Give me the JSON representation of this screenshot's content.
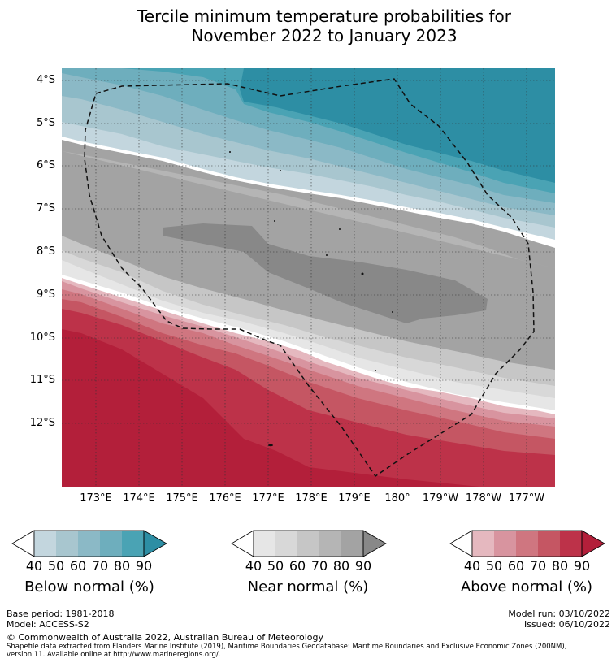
{
  "title_line1": "Tercile minimum temperature probabilities for",
  "title_line2": "November 2022 to January 2023",
  "map": {
    "lat_labels": [
      "4°S",
      "5°S",
      "6°S",
      "7°S",
      "8°S",
      "9°S",
      "10°S",
      "11°S",
      "12°S"
    ],
    "lon_labels": [
      "173°E",
      "174°E",
      "175°E",
      "176°E",
      "177°E",
      "178°E",
      "179°E",
      "180°",
      "179°W",
      "178°W",
      "177°W"
    ],
    "region_outline": "dashed EEZ boundary",
    "colors": {
      "below": [
        "#c3d6de",
        "#a8c6cf",
        "#8bb9c6",
        "#6eaebd",
        "#4aa3b4",
        "#2d8ea4"
      ],
      "near": [
        "#e6e6e6",
        "#d8d8d8",
        "#c6c6c6",
        "#b5b5b5",
        "#a3a3a3",
        "#888888"
      ],
      "above": [
        "#e5b8bf",
        "#d8949f",
        "#cf7680",
        "#c55663",
        "#bd3249",
        "#b31f3a"
      ]
    }
  },
  "colorbars": [
    {
      "name": "below",
      "title": "Below normal (%)",
      "ticks": [
        "40",
        "50",
        "60",
        "70",
        "80",
        "90"
      ]
    },
    {
      "name": "near",
      "title": "Near normal (%)",
      "ticks": [
        "40",
        "50",
        "60",
        "70",
        "80",
        "90"
      ]
    },
    {
      "name": "above",
      "title": "Above normal (%)",
      "ticks": [
        "40",
        "50",
        "60",
        "70",
        "80",
        "90"
      ]
    }
  ],
  "footer": {
    "base_period": "Base period: 1981-2018",
    "model": "Model: ACCESS-S2",
    "model_run": "Model run: 03/10/2022",
    "issued": "Issued: 06/10/2022",
    "copyright": "© Commonwealth of Australia 2022, Australian Bureau of Meteorology",
    "shapefile_line1": "Shapefile data extracted from Flanders Marine Institute (2019), Maritime Boundaries Geodatabase: Maritime Boundaries and Exclusive Economic Zones (200NM),",
    "shapefile_line2": "version 11. Available online at http://www.marineregions.org/."
  }
}
